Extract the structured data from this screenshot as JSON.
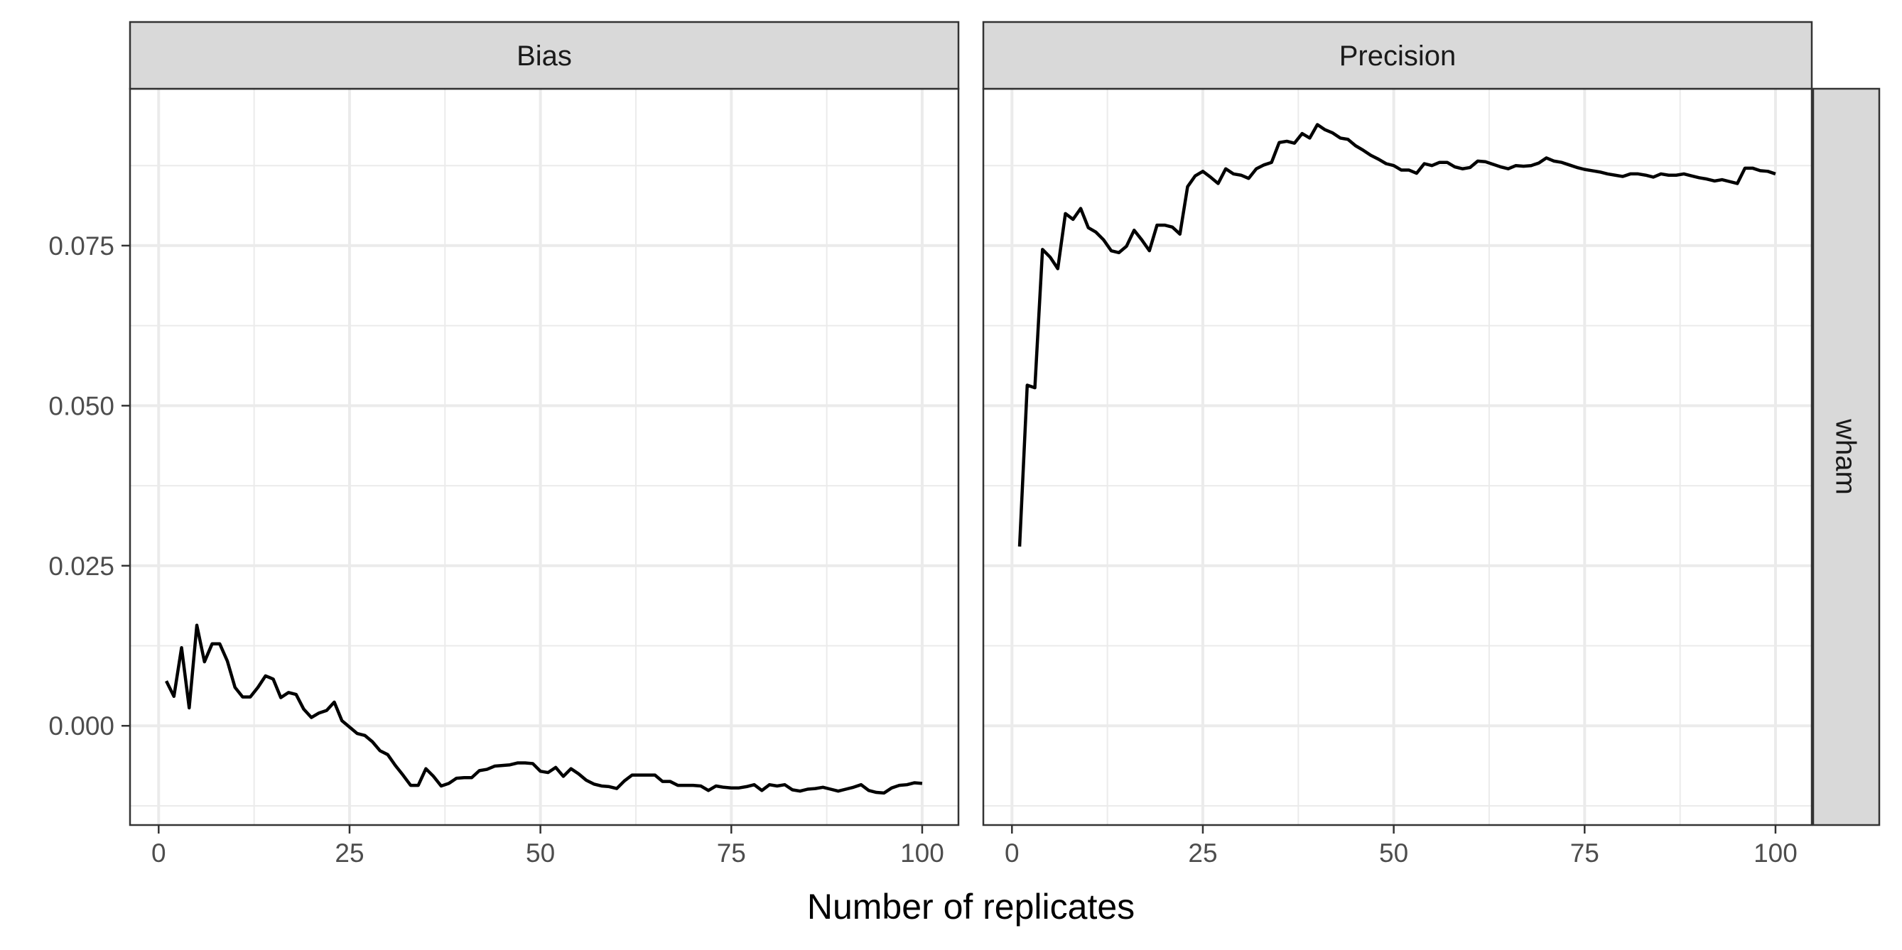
{
  "chart_data": {
    "type": "line",
    "xlabel": "Number of replicates",
    "ylabel": "",
    "xlim": [
      -3.75,
      104.75
    ],
    "ylim": [
      -0.0155,
      0.0995
    ],
    "x_ticks": [
      0,
      25,
      50,
      75,
      100
    ],
    "y_ticks": [
      0.0,
      0.025,
      0.05,
      0.075
    ],
    "y_tick_labels": [
      "0.000",
      "0.025",
      "0.050",
      "0.075"
    ],
    "grid": true,
    "row_strip": "wham",
    "panels": [
      {
        "name": "Bias",
        "x_start": 1,
        "values": [
          0.007,
          0.0046,
          0.0122,
          0.0028,
          0.0157,
          0.01,
          0.0128,
          0.0128,
          0.0101,
          0.006,
          0.0045,
          0.0045,
          0.006,
          0.0078,
          0.0073,
          0.0044,
          0.0052,
          0.0049,
          0.0026,
          0.0013,
          0.002,
          0.0024,
          0.0037,
          0.0008,
          -0.0002,
          -0.0012,
          -0.0015,
          -0.0025,
          -0.0039,
          -0.0045,
          -0.0062,
          -0.0077,
          -0.0093,
          -0.0093,
          -0.0067,
          -0.0079,
          -0.0094,
          -0.009,
          -0.0082,
          -0.0081,
          -0.0081,
          -0.007,
          -0.0068,
          -0.0063,
          -0.0062,
          -0.0061,
          -0.0058,
          -0.0058,
          -0.0059,
          -0.0071,
          -0.0073,
          -0.0065,
          -0.0079,
          -0.0067,
          -0.0075,
          -0.0085,
          -0.0091,
          -0.0094,
          -0.0095,
          -0.0098,
          -0.0086,
          -0.0077,
          -0.0077,
          -0.0077,
          -0.0077,
          -0.0087,
          -0.0087,
          -0.0093,
          -0.0093,
          -0.0093,
          -0.0094,
          -0.0101,
          -0.0094,
          -0.0096,
          -0.0097,
          -0.0097,
          -0.0095,
          -0.0092,
          -0.0101,
          -0.0092,
          -0.0094,
          -0.0092,
          -0.01,
          -0.0102,
          -0.0099,
          -0.0098,
          -0.0096,
          -0.0099,
          -0.0102,
          -0.0099,
          -0.0096,
          -0.0092,
          -0.0101,
          -0.0104,
          -0.0105,
          -0.0097,
          -0.0093,
          -0.0092,
          -0.0089,
          -0.009
        ]
      },
      {
        "name": "Precision",
        "x_start": 1,
        "values": [
          0.028,
          0.0532,
          0.0528,
          0.0744,
          0.0732,
          0.0714,
          0.08,
          0.0791,
          0.0808,
          0.0778,
          0.0771,
          0.0759,
          0.0742,
          0.0739,
          0.0749,
          0.0774,
          0.0759,
          0.0742,
          0.0782,
          0.0782,
          0.0779,
          0.0768,
          0.0842,
          0.0859,
          0.0866,
          0.0857,
          0.0847,
          0.087,
          0.0862,
          0.086,
          0.0855,
          0.087,
          0.0876,
          0.088,
          0.0911,
          0.0913,
          0.091,
          0.0925,
          0.0918,
          0.0939,
          0.0931,
          0.0926,
          0.0918,
          0.0916,
          0.0906,
          0.0899,
          0.0891,
          0.0885,
          0.0878,
          0.0875,
          0.0868,
          0.0868,
          0.0863,
          0.0878,
          0.0875,
          0.088,
          0.088,
          0.0873,
          0.087,
          0.0872,
          0.0882,
          0.0881,
          0.0877,
          0.0873,
          0.087,
          0.0875,
          0.0874,
          0.0875,
          0.0879,
          0.0887,
          0.0882,
          0.088,
          0.0876,
          0.0872,
          0.0869,
          0.0867,
          0.0865,
          0.0862,
          0.086,
          0.0858,
          0.0862,
          0.0862,
          0.086,
          0.0857,
          0.0862,
          0.086,
          0.086,
          0.0862,
          0.0859,
          0.0856,
          0.0854,
          0.0851,
          0.0853,
          0.085,
          0.0847,
          0.0871,
          0.0871,
          0.0867,
          0.0866,
          0.0862
        ]
      }
    ]
  }
}
